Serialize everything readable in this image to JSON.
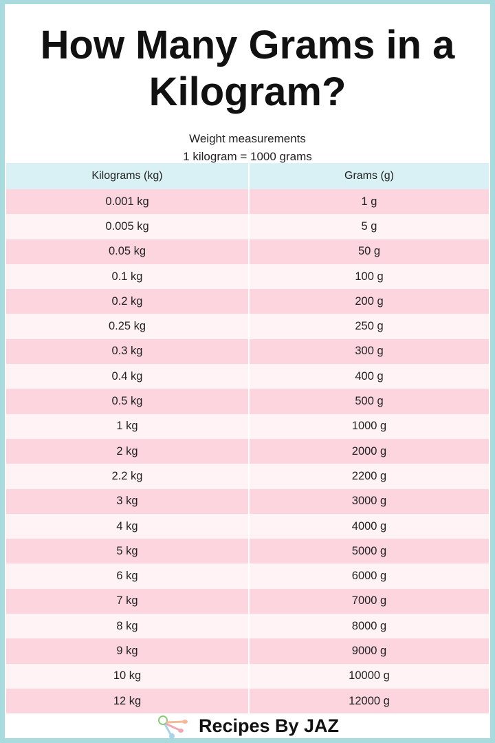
{
  "title": "How Many Grams in a Kilogram?",
  "subtitle": "Weight measurements",
  "conversion_note": "1 kilogram =  1000 grams",
  "table": {
    "headers": [
      "Kilograms (kg)",
      "Grams (g)"
    ],
    "rows": [
      [
        "0.001 kg",
        "1 g"
      ],
      [
        "0.005 kg",
        "5 g"
      ],
      [
        "0.05 kg",
        "50 g"
      ],
      [
        "0.1 kg",
        "100 g"
      ],
      [
        "0.2 kg",
        "200 g"
      ],
      [
        "0.25 kg",
        "250 g"
      ],
      [
        "0.3 kg",
        "300 g"
      ],
      [
        "0.4 kg",
        "400 g"
      ],
      [
        "0.5 kg",
        "500 g"
      ],
      [
        "1 kg",
        "1000 g"
      ],
      [
        "2 kg",
        "2000 g"
      ],
      [
        "2.2 kg",
        "2200 g"
      ],
      [
        "3 kg",
        "3000 g"
      ],
      [
        "4 kg",
        "4000 g"
      ],
      [
        "5 kg",
        "5000 g"
      ],
      [
        "6 kg",
        "6000 g"
      ],
      [
        "7 kg",
        "7000 g"
      ],
      [
        "8 kg",
        "8000 g"
      ],
      [
        "9 kg",
        "9000 g"
      ],
      [
        "10 kg",
        "10000 g"
      ],
      [
        "12 kg",
        "12000 g"
      ]
    ]
  },
  "footer": {
    "brand": "Recipes By JAZ",
    "logo_icon": "measuring-spoons-icon"
  },
  "colors": {
    "border": "#a9dadd",
    "header_bg": "#d9f1f4",
    "row_pink": "#fcd5df",
    "row_light": "#fff3f5"
  }
}
